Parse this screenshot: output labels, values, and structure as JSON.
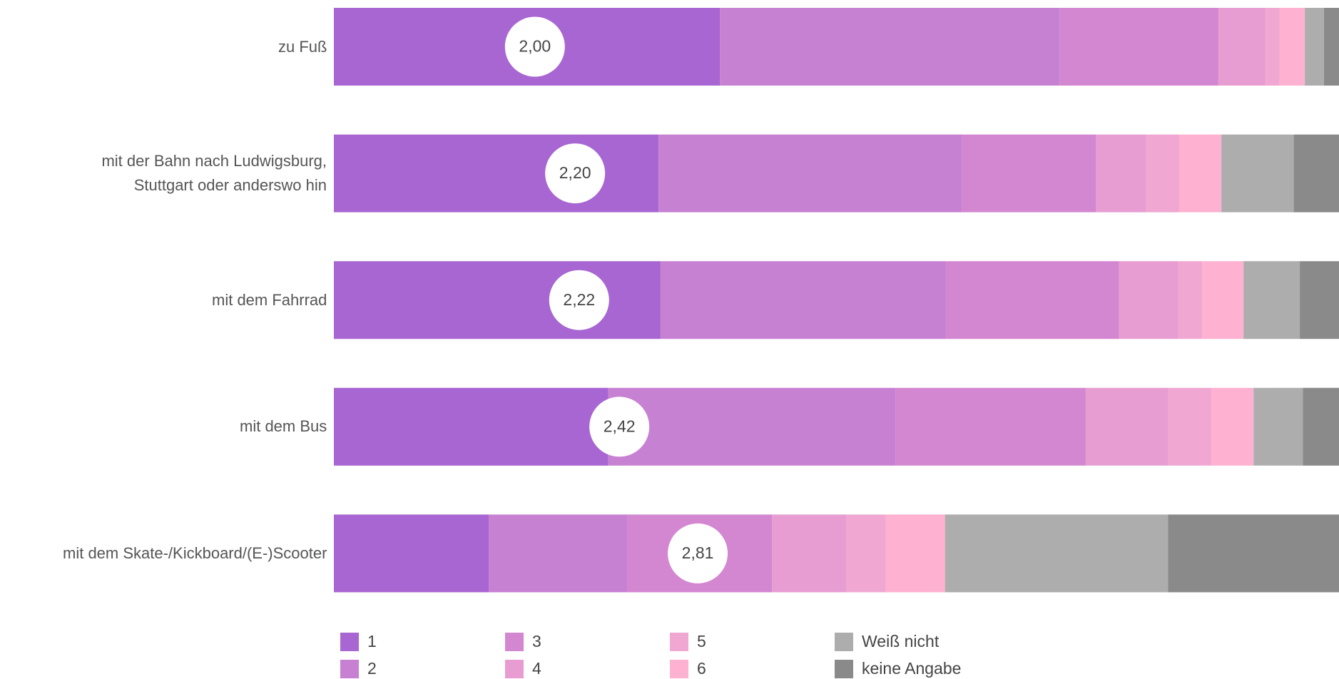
{
  "chart_data": {
    "type": "stacked-bar-horizontal",
    "categories": [
      "zu Fuß",
      "mit der Bahn nach Ludwigsburg, Stuttgart oder anderswo hin",
      "mit dem Fahrrad",
      "mit dem Bus",
      "mit dem Skate-/Kickboard/(E-)Scooter"
    ],
    "xlim": [
      0,
      100
    ],
    "series": [
      {
        "name": "1",
        "color": "#a866d2",
        "values": [
          38.4,
          32.3,
          32.5,
          27.3,
          15.4
        ]
      },
      {
        "name": "2",
        "color": "#c781d2",
        "values": [
          33.8,
          30.2,
          28.4,
          28.6,
          13.8
        ]
      },
      {
        "name": "3",
        "color": "#d387d0",
        "values": [
          15.8,
          13.3,
          17.2,
          18.9,
          14.4
        ]
      },
      {
        "name": "4",
        "color": "#e79dd2",
        "values": [
          4.7,
          5.0,
          5.9,
          8.2,
          7.4
        ]
      },
      {
        "name": "5",
        "color": "#f0a8d2",
        "values": [
          1.4,
          3.3,
          2.4,
          4.3,
          3.9
        ]
      },
      {
        "name": "6",
        "color": "#feb1d0",
        "values": [
          2.5,
          4.2,
          4.1,
          4.2,
          5.9
        ]
      },
      {
        "name": "Weiß nicht",
        "color": "#adadad",
        "values": [
          1.9,
          7.2,
          5.6,
          4.9,
          22.2
        ]
      },
      {
        "name": "keine Angabe",
        "color": "#8a8a8a",
        "values": [
          1.5,
          4.5,
          3.9,
          3.6,
          17.0
        ]
      }
    ],
    "means": {
      "values": [
        2.0,
        2.2,
        2.22,
        2.42,
        2.81
      ],
      "value_labels": [
        "2,00",
        "2,20",
        "2,22",
        "2,42",
        "2,81"
      ],
      "xlim": [
        1,
        6
      ]
    }
  }
}
